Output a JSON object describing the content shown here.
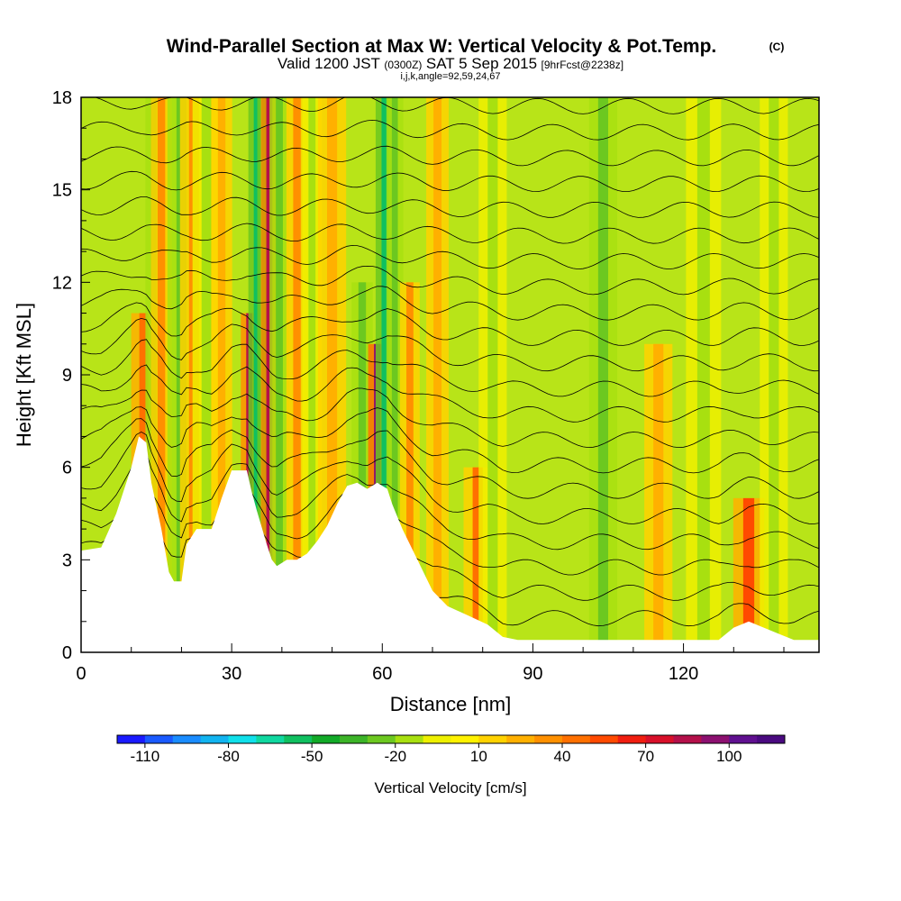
{
  "chart_data": {
    "type": "heatmap",
    "title": "Wind-Parallel Section at Max W: Vertical Velocity & Pot.Temp.",
    "copyright_mark": "(C)",
    "subtitle": {
      "valid_prefix": "Valid 1200 JST",
      "zulu": "(0300Z)",
      "date": "SAT 5 Sep 2015",
      "forecast": "[9hrFcst@2238z]"
    },
    "info_line": "i,j,k,angle=92,59,24,67",
    "xlabel": "Distance [nm]",
    "ylabel": "Height [Kft MSL]",
    "xlim": [
      0,
      147
    ],
    "ylim": [
      0,
      18
    ],
    "x_ticks": [
      "0",
      "30",
      "60",
      "90",
      "120"
    ],
    "x_tick_values": [
      0,
      30,
      60,
      90,
      120
    ],
    "y_ticks": [
      "0",
      "3",
      "6",
      "9",
      "12",
      "15",
      "18"
    ],
    "y_tick_values": [
      0,
      3,
      6,
      9,
      12,
      15,
      18
    ],
    "colorbar": {
      "label": "Vertical Velocity [cm/s]",
      "range": [
        -120,
        120
      ],
      "labels": [
        "-110",
        "-80",
        "-50",
        "-20",
        "10",
        "40",
        "70",
        "100"
      ],
      "label_values": [
        -110,
        -80,
        -50,
        -20,
        10,
        40,
        70,
        100
      ],
      "colors": [
        "#1a1aff",
        "#1a5aff",
        "#1a8cff",
        "#12b4f0",
        "#10e0ea",
        "#10d8a0",
        "#10c060",
        "#12aa28",
        "#3cb428",
        "#6cc820",
        "#a8e010",
        "#eef000",
        "#fff200",
        "#ffd200",
        "#ffb000",
        "#ff9000",
        "#ff7000",
        "#ff4a00",
        "#f01e10",
        "#d8102a",
        "#b4104a",
        "#8c1070",
        "#601090",
        "#4a0a80"
      ]
    },
    "terrain_profile": [
      [
        0,
        3.3
      ],
      [
        4,
        3.4
      ],
      [
        7,
        4.5
      ],
      [
        10,
        6.0
      ],
      [
        11.5,
        7.0
      ],
      [
        13,
        6.8
      ],
      [
        14,
        5.5
      ],
      [
        16,
        4.0
      ],
      [
        17.5,
        2.6
      ],
      [
        18.5,
        2.3
      ],
      [
        20,
        2.3
      ],
      [
        21,
        3.5
      ],
      [
        23,
        4.0
      ],
      [
        26,
        4.0
      ],
      [
        28,
        5.0
      ],
      [
        30,
        5.9
      ],
      [
        32,
        5.9
      ],
      [
        33,
        5.9
      ],
      [
        34,
        5.2
      ],
      [
        35,
        4.6
      ],
      [
        37,
        3.5
      ],
      [
        38,
        3.0
      ],
      [
        39,
        2.8
      ],
      [
        41,
        3.0
      ],
      [
        43,
        3.0
      ],
      [
        45,
        3.2
      ],
      [
        47,
        3.6
      ],
      [
        49,
        4.1
      ],
      [
        51,
        4.8
      ],
      [
        53,
        5.4
      ],
      [
        55,
        5.5
      ],
      [
        57,
        5.3
      ],
      [
        59,
        5.5
      ],
      [
        61,
        5.3
      ],
      [
        62,
        4.8
      ],
      [
        64,
        4.0
      ],
      [
        67,
        3.0
      ],
      [
        70,
        2.0
      ],
      [
        73,
        1.5
      ],
      [
        77,
        1.2
      ],
      [
        81,
        0.9
      ],
      [
        84,
        0.5
      ],
      [
        87,
        0.4
      ],
      [
        90,
        0.4
      ],
      [
        100,
        0.4
      ],
      [
        110,
        0.4
      ],
      [
        120,
        0.4
      ],
      [
        127,
        0.4
      ],
      [
        130,
        0.8
      ],
      [
        133,
        1.0
      ],
      [
        136,
        0.8
      ],
      [
        139,
        0.6
      ],
      [
        142,
        0.4
      ],
      [
        147,
        0.4
      ]
    ],
    "velocity_bands": [
      {
        "x": 12.5,
        "w": 1.8,
        "v": 45,
        "top": 11
      },
      {
        "x": 14.5,
        "w": 1.2,
        "v": -25,
        "top": 18
      },
      {
        "x": 16,
        "w": 1.5,
        "v": 35,
        "top": 18
      },
      {
        "x": 20,
        "w": 2.0,
        "v": -25,
        "top": 18
      },
      {
        "x": 22.5,
        "w": 2.0,
        "v": 30,
        "top": 18
      },
      {
        "x": 25,
        "w": 2.0,
        "v": -20,
        "top": 18
      },
      {
        "x": 28,
        "w": 1.5,
        "v": 25,
        "top": 18
      },
      {
        "x": 33.5,
        "w": 1.2,
        "v": 85,
        "top": 11
      },
      {
        "x": 35,
        "w": 1.2,
        "v": -60,
        "top": 18
      },
      {
        "x": 36.5,
        "w": 1.0,
        "v": -45,
        "top": 18
      },
      {
        "x": 37.5,
        "w": 1.2,
        "v": 85,
        "top": 18
      },
      {
        "x": 39.5,
        "w": 1.4,
        "v": -25,
        "top": 18
      },
      {
        "x": 43,
        "w": 1.5,
        "v": 35,
        "top": 18
      },
      {
        "x": 46,
        "w": 1.4,
        "v": -20,
        "top": 18
      },
      {
        "x": 50,
        "w": 2.0,
        "v": 25,
        "top": 18
      },
      {
        "x": 56,
        "w": 1.5,
        "v": -30,
        "top": 12
      },
      {
        "x": 59,
        "w": 1.3,
        "v": 95,
        "top": 10
      },
      {
        "x": 60.5,
        "w": 1.3,
        "v": -55,
        "top": 18
      },
      {
        "x": 62.5,
        "w": 1.2,
        "v": -30,
        "top": 18
      },
      {
        "x": 65.5,
        "w": 1.4,
        "v": 30,
        "top": 12
      },
      {
        "x": 71,
        "w": 1.6,
        "v": 25,
        "top": 18
      },
      {
        "x": 79,
        "w": 2.0,
        "v": 40,
        "top": 6
      },
      {
        "x": 82,
        "w": 2.0,
        "v": -20,
        "top": 18
      },
      {
        "x": 104,
        "w": 2.0,
        "v": -25,
        "top": 18
      },
      {
        "x": 115,
        "w": 2.0,
        "v": 20,
        "top": 10
      },
      {
        "x": 124,
        "w": 2.5,
        "v": -20,
        "top": 18
      },
      {
        "x": 133,
        "w": 2.2,
        "v": 55,
        "top": 5
      },
      {
        "x": 138,
        "w": 2.0,
        "v": -15,
        "top": 18
      }
    ],
    "theta_contour_levels": 21
  }
}
